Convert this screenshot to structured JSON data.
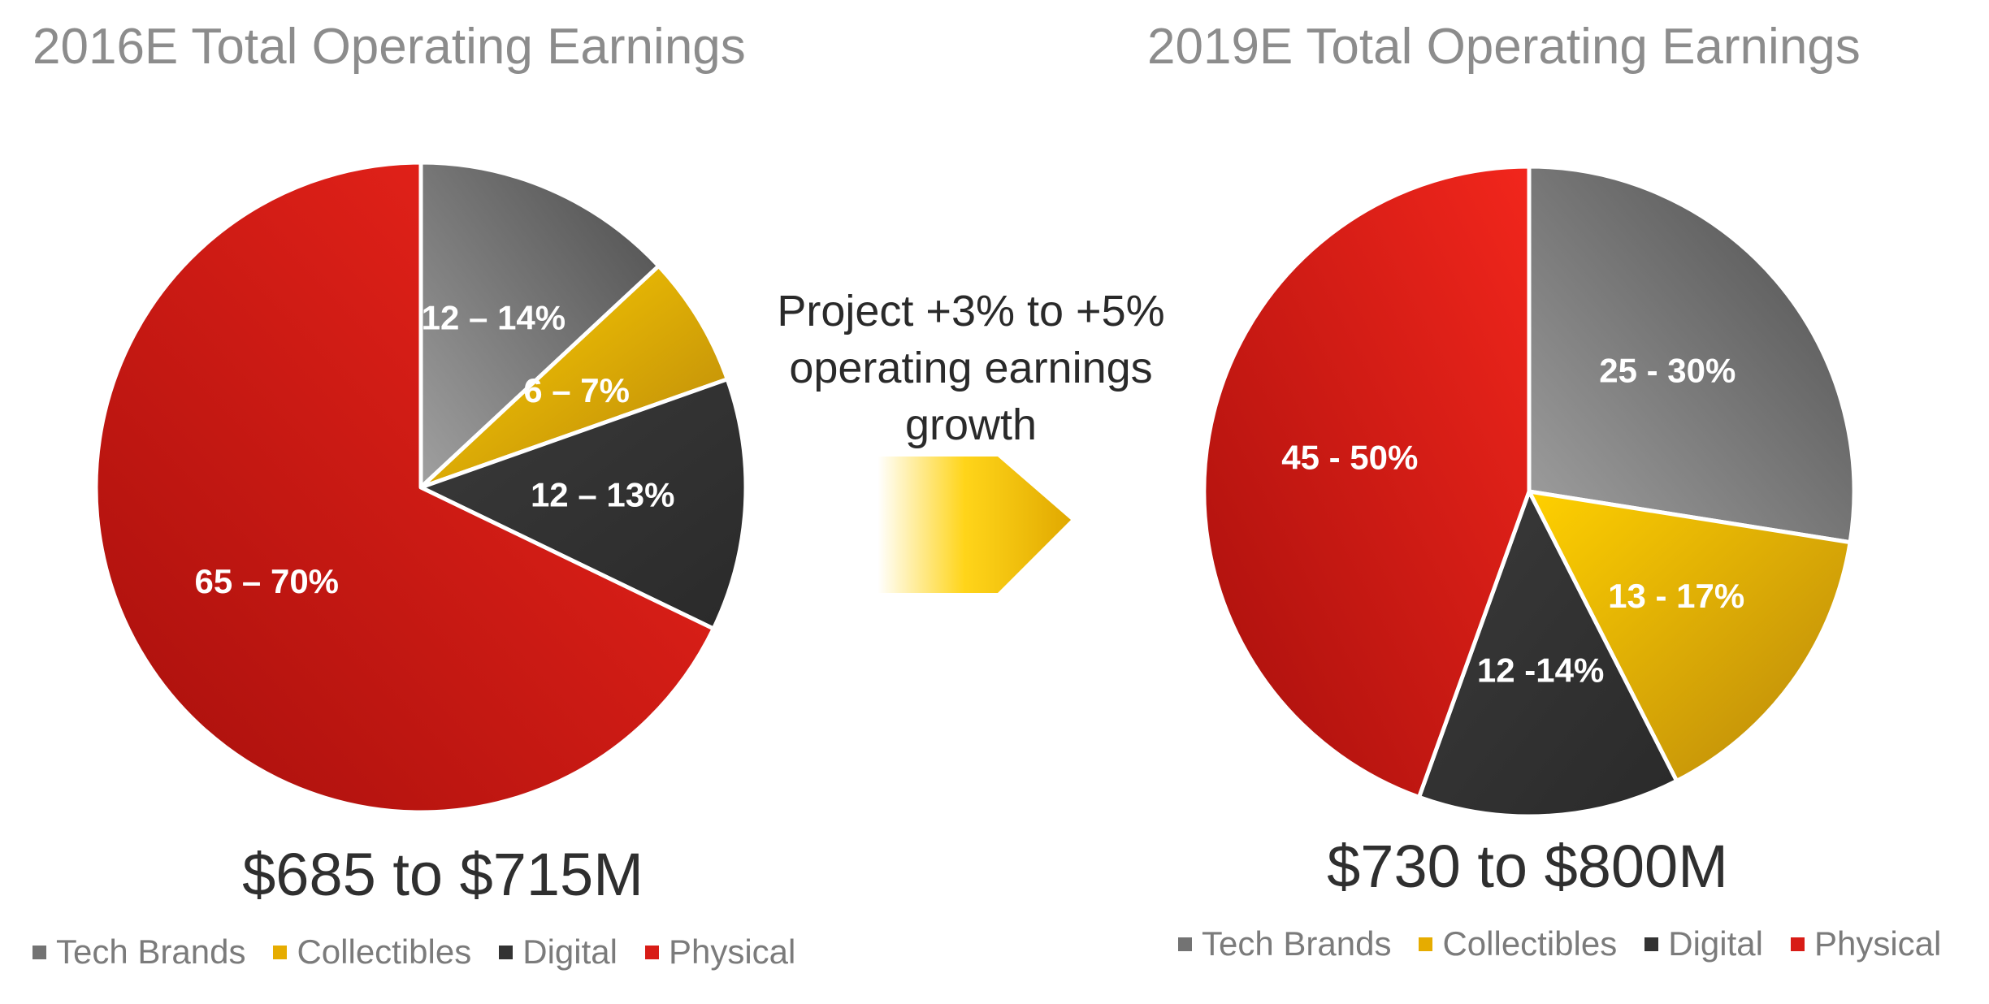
{
  "growth_text": [
    "Project +3% to +5%",
    "operating earnings",
    "growth"
  ],
  "colors": {
    "tech": [
      "#a0a0a0",
      "#4c4c4c"
    ],
    "collect": [
      "#ffd000",
      "#b8860b"
    ],
    "digital": [
      "#3a3a3a",
      "#2a2a2a"
    ],
    "physical": [
      "#f2261c",
      "#a60f0c"
    ]
  },
  "chart_data": [
    {
      "type": "pie",
      "title": "2016E Total Operating Earnings",
      "total_label": "$685 to $715M",
      "legend": [
        "Tech Brands",
        "Collectibles",
        "Digital",
        "Physical"
      ],
      "slices": [
        {
          "name": "Tech Brands",
          "label": "12 – 14%",
          "value": 13
        },
        {
          "name": "Collectibles",
          "label": "6 – 7%",
          "value": 6.5
        },
        {
          "name": "Digital",
          "label": "12 – 13%",
          "value": 12.5
        },
        {
          "name": "Physical",
          "label": "65 – 70%",
          "value": 67.5
        }
      ]
    },
    {
      "type": "pie",
      "title": "2019E Total Operating Earnings",
      "total_label": "$730 to $800M",
      "legend": [
        "Tech Brands",
        "Collectibles",
        "Digital",
        "Physical"
      ],
      "slices": [
        {
          "name": "Tech Brands",
          "label": "25 - 30%",
          "value": 27.5
        },
        {
          "name": "Collectibles",
          "label": "13 - 17%",
          "value": 15
        },
        {
          "name": "Digital",
          "label": "12 -14%",
          "value": 13
        },
        {
          "name": "Physical",
          "label": "45 - 50%",
          "value": 44.5
        }
      ]
    }
  ]
}
